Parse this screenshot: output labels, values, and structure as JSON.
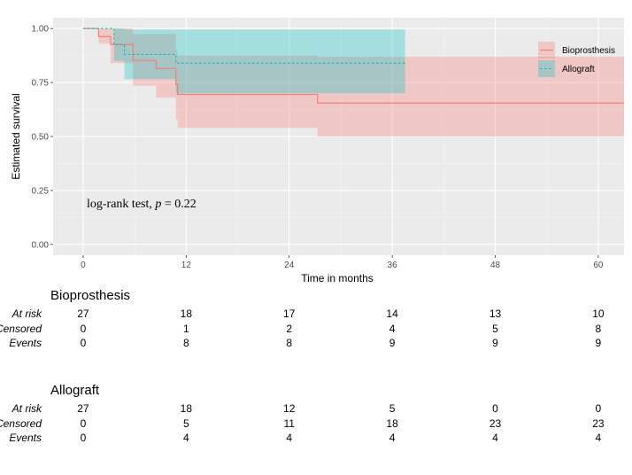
{
  "chart_data": {
    "type": "line",
    "subtype": "kaplan-meier",
    "xlabel": "Time in months",
    "ylabel": "Estimated survival",
    "xlim": [
      -3.5,
      63
    ],
    "ylim": [
      -0.05,
      1.05
    ],
    "xticks": [
      0,
      12,
      24,
      36,
      48,
      60
    ],
    "xtick_labels": [
      "0",
      "12",
      "24",
      "36",
      "48",
      "60"
    ],
    "yticks": [
      0,
      0.25,
      0.5,
      0.75,
      1.0
    ],
    "ytick_labels": [
      "0.00",
      "0.25",
      "0.50",
      "0.75",
      "1.00"
    ],
    "grid": true,
    "legend_position": "top-right",
    "annotation": {
      "prefix": "log-rank test, ",
      "var": "p",
      "suffix": " = 0.22",
      "x": 1.2,
      "y": 0.185
    },
    "series": [
      {
        "name": "Bioprosthesis",
        "color": "#F8766D",
        "band_color": "#F8766D",
        "dashed": false,
        "steps": [
          {
            "t": 0,
            "s": 1.0,
            "lo": 1.0,
            "hi": 1.0
          },
          {
            "t": 1.8,
            "s": 0.963,
            "lo": 0.93,
            "hi": 1.0
          },
          {
            "t": 3.2,
            "s": 0.926,
            "lo": 0.84,
            "hi": 1.0
          },
          {
            "t": 5.8,
            "s": 0.852,
            "lo": 0.735,
            "hi": 0.975
          },
          {
            "t": 8.5,
            "s": 0.815,
            "lo": 0.68,
            "hi": 0.975
          },
          {
            "t": 10.8,
            "s": 0.74,
            "lo": 0.58,
            "hi": 0.9
          },
          {
            "t": 11.0,
            "s": 0.695,
            "lo": 0.54,
            "hi": 0.875
          },
          {
            "t": 27.3,
            "s": 0.655,
            "lo": 0.5,
            "hi": 0.87
          },
          {
            "t": 63,
            "s": 0.655,
            "lo": 0.5,
            "hi": 0.87
          }
        ]
      },
      {
        "name": "Allograft",
        "color": "#00BFC4",
        "band_color": "#00BFC4",
        "dashed": true,
        "steps": [
          {
            "t": 0,
            "s": 1.0,
            "lo": 1.0,
            "hi": 1.0
          },
          {
            "t": 3.6,
            "s": 0.925,
            "lo": 0.85,
            "hi": 1.0
          },
          {
            "t": 4.8,
            "s": 0.88,
            "lo": 0.765,
            "hi": 0.995
          },
          {
            "t": 10.8,
            "s": 0.84,
            "lo": 0.7,
            "hi": 0.995
          },
          {
            "t": 37.5,
            "s": 0.84,
            "lo": 0.7,
            "hi": 0.995
          }
        ]
      }
    ]
  },
  "risk_table": {
    "times": [
      0,
      12,
      24,
      36,
      48,
      60
    ],
    "row_labels": {
      "at_risk": "At risk",
      "censored": "Censored",
      "events": "Events"
    },
    "groups": [
      {
        "name": "Bioprosthesis",
        "at_risk": [
          "27",
          "18",
          "17",
          "14",
          "13",
          "10"
        ],
        "censored": [
          "0",
          "1",
          "2",
          "4",
          "5",
          "8"
        ],
        "events": [
          "0",
          "8",
          "8",
          "9",
          "9",
          "9"
        ]
      },
      {
        "name": "Allograft",
        "at_risk": [
          "27",
          "18",
          "12",
          "5",
          "0",
          "0"
        ],
        "censored": [
          "0",
          "5",
          "11",
          "18",
          "23",
          "23"
        ],
        "events": [
          "0",
          "4",
          "4",
          "4",
          "4",
          "4"
        ]
      }
    ]
  }
}
